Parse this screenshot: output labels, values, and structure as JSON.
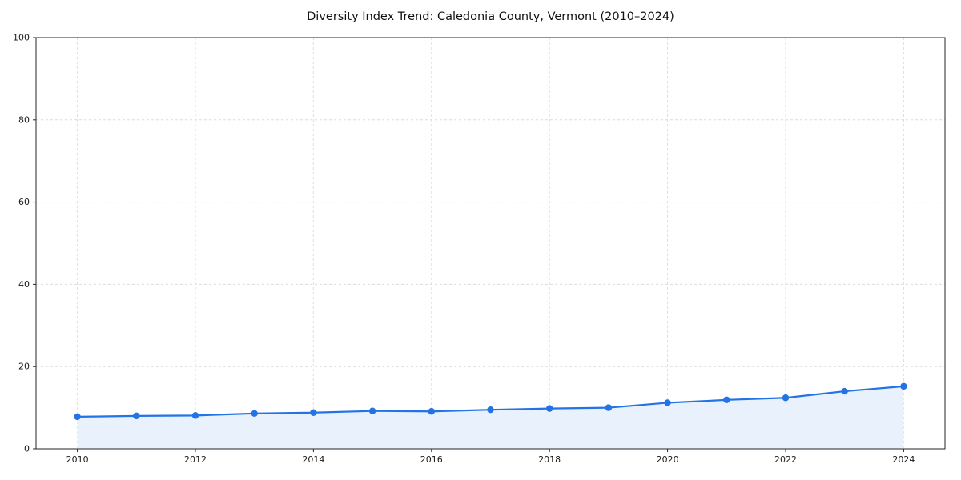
{
  "chart_data": {
    "type": "line",
    "title": "Diversity Index Trend: Caledonia County, Vermont (2010–2024)",
    "x": [
      2010,
      2011,
      2012,
      2013,
      2014,
      2015,
      2016,
      2017,
      2018,
      2019,
      2020,
      2021,
      2022,
      2023,
      2024
    ],
    "values": [
      7.8,
      8.0,
      8.1,
      8.6,
      8.8,
      9.2,
      9.1,
      9.5,
      9.8,
      10.0,
      11.2,
      11.9,
      12.4,
      14.0,
      15.2
    ],
    "series_name": "Diversity Index",
    "xlabel": "",
    "ylabel": "",
    "ylim": [
      0,
      100
    ],
    "xticks": [
      2010,
      2012,
      2014,
      2016,
      2018,
      2020,
      2022,
      2024
    ],
    "yticks": [
      0,
      20,
      40,
      60,
      80,
      100
    ],
    "grid": "dashed",
    "legend": "none",
    "style": {
      "line_color": "#2173e6",
      "marker_color": "#2173e6",
      "fill_color": "#e8f1fc",
      "grid_color": "#dcdcdc",
      "axis_color": "#262626",
      "tick_label_color": "#1a1a1a"
    }
  }
}
